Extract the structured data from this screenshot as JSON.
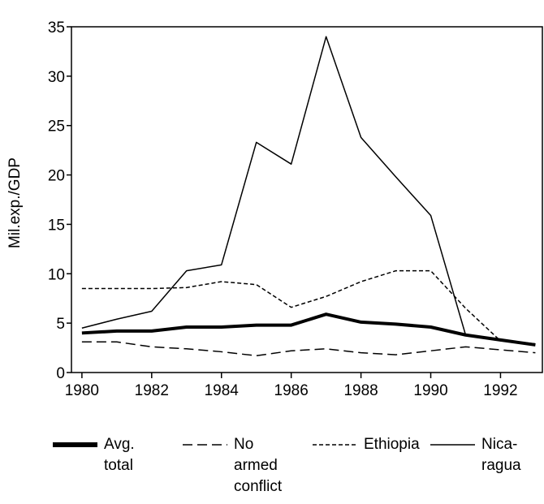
{
  "chart_data": {
    "type": "line",
    "y_label": "Mil.exp./GDP",
    "x": [
      1980,
      1981,
      1982,
      1983,
      1984,
      1985,
      1986,
      1987,
      1988,
      1989,
      1990,
      1991,
      1992,
      1993
    ],
    "xlim": [
      1979.7,
      1993.2
    ],
    "xticks": [
      1980,
      1982,
      1984,
      1986,
      1988,
      1990,
      1992
    ],
    "ylim": [
      0,
      35
    ],
    "yticks": [
      0,
      5,
      10,
      15,
      20,
      25,
      30,
      35
    ],
    "legend": "bottom",
    "series": [
      {
        "name": "Avg. total",
        "color": "#000000",
        "line_style": "solid",
        "line_width": 4,
        "values": [
          4.0,
          4.2,
          4.2,
          4.6,
          4.6,
          4.8,
          4.8,
          5.9,
          5.1,
          4.9,
          4.6,
          3.8,
          3.3,
          2.8
        ]
      },
      {
        "name": "No armed conflict",
        "color": "#000000",
        "line_style": "dashed",
        "line_width": 1.5,
        "values": [
          3.1,
          3.1,
          2.6,
          2.4,
          2.1,
          1.7,
          2.2,
          2.4,
          2.0,
          1.8,
          2.2,
          2.6,
          2.3,
          2.0
        ]
      },
      {
        "name": "Ethiopia",
        "color": "#000000",
        "line_style": "dotted",
        "line_width": 1.5,
        "values": [
          8.5,
          8.5,
          8.5,
          8.6,
          9.2,
          8.9,
          6.6,
          7.7,
          9.2,
          10.3,
          10.3,
          6.5,
          3.2,
          2.9
        ]
      },
      {
        "name": "Nica-ragua",
        "color": "#000000",
        "line_style": "solid",
        "line_width": 1.5,
        "values": [
          4.5,
          5.4,
          6.2,
          10.3,
          10.9,
          23.3,
          21.1,
          34.0,
          23.8,
          19.8,
          15.9,
          3.8,
          3.3,
          2.9
        ]
      }
    ]
  }
}
